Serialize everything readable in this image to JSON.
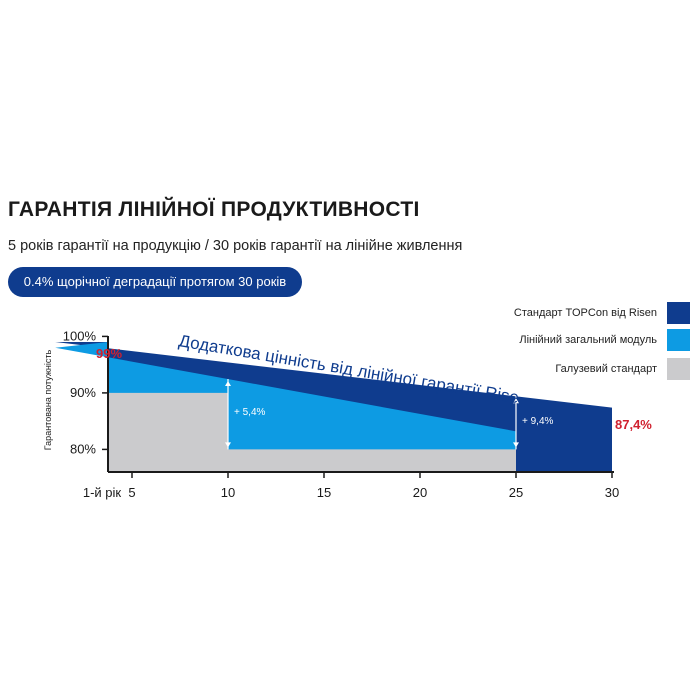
{
  "header": {
    "title": "ГАРАНТІЯ ЛІНІЙНОЇ ПРОДУКТИВНОСТІ",
    "subtitle": "5 років гарантії на продукцію / 30 років гарантії на лінійне живлення",
    "badge": "0.4% щорічної деградації протягом 30 років"
  },
  "chart_data": {
    "type": "area",
    "title": "",
    "xlabel": "",
    "ylabel": "Гарантована потужність",
    "x_ticks": [
      "1-й рік",
      "5",
      "10",
      "15",
      "20",
      "25",
      "30"
    ],
    "y_ticks": [
      "100%",
      "90%",
      "80%"
    ],
    "xlim": [
      0,
      30
    ],
    "ylim": [
      76,
      100
    ],
    "legend_position": "top-right",
    "series": [
      {
        "name": "Стандарт TOPCon від Risen",
        "color": "#0f3c8e",
        "points": [
          [
            0,
            99
          ],
          [
            1,
            99
          ],
          [
            30,
            87.4
          ]
        ]
      },
      {
        "name": "Лінійний загальний модуль",
        "color": "#0d9be3",
        "points": [
          [
            0,
            99
          ],
          [
            1,
            98
          ],
          [
            25,
            83.2
          ]
        ]
      },
      {
        "name": "Галузевий стандарт",
        "color": "#cbcbcd",
        "steps": [
          [
            0,
            10,
            90
          ],
          [
            10,
            25,
            80
          ]
        ]
      }
    ],
    "annotations": {
      "start_value": "99%",
      "end_value": "87,4%",
      "arc_text": "Додаткова цінність від лінійної гарантії Risen",
      "gain_10": {
        "x": 10,
        "text": "+ 5,4%"
      },
      "gain_25": {
        "x": 25,
        "text": "+ 9,4%"
      }
    }
  }
}
